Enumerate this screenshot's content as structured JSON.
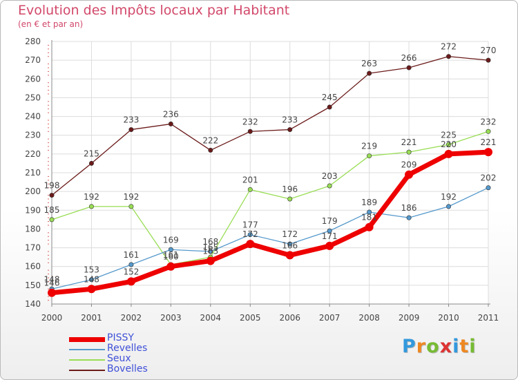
{
  "title": "Evolution des Impôts locaux par Habitant",
  "subtitle": "(en € et par an)",
  "brand": {
    "text": "Proxiti",
    "letters": [
      {
        "ch": "P",
        "color": "#3399dd"
      },
      {
        "ch": "r",
        "color": "#ee8822"
      },
      {
        "ch": "o",
        "color": "#77bb33"
      },
      {
        "ch": "x",
        "color": "#dd3333"
      },
      {
        "ch": "i",
        "color": "#3399dd"
      },
      {
        "ch": "t",
        "color": "#ee8822"
      },
      {
        "ch": "i",
        "color": "#77bb33"
      }
    ]
  },
  "chart_data": {
    "type": "line",
    "title": "Evolution des Impôts locaux par Habitant",
    "subtitle": "(en € et par an)",
    "x": [
      "2000",
      "2001",
      "2002",
      "2003",
      "2004",
      "2005",
      "2006",
      "2007",
      "2008",
      "2009",
      "2010",
      "2011"
    ],
    "ylim": [
      140,
      280
    ],
    "yticks": [
      140,
      150,
      160,
      170,
      180,
      190,
      200,
      210,
      220,
      230,
      240,
      250,
      260,
      270,
      280
    ],
    "grid": true,
    "legend_position": "bottom-left",
    "series": [
      {
        "name": "Bovelles",
        "color": "#6b1a1a",
        "values": [
          198,
          215,
          233,
          236,
          222,
          232,
          233,
          245,
          263,
          266,
          272,
          270
        ],
        "labels": [
          "198",
          "215",
          "233",
          "236",
          "222",
          "232",
          "233",
          "245",
          "263",
          "266",
          "272",
          "270"
        ]
      },
      {
        "name": "Seux",
        "color": "#99dd55",
        "values": [
          185,
          192,
          192,
          161,
          165,
          201,
          196,
          203,
          219,
          221,
          225,
          232
        ],
        "labels": [
          "185",
          "192",
          "192",
          "161",
          "165",
          "201",
          "196",
          "203",
          "219",
          "221",
          "225",
          "232"
        ]
      },
      {
        "name": "Revelles",
        "color": "#5599cc",
        "values": [
          148,
          153,
          161,
          169,
          168,
          177,
          172,
          179,
          189,
          186,
          192,
          202
        ],
        "labels": [
          "148",
          "153",
          "161",
          "169",
          "168",
          "177",
          "172",
          "179",
          "189",
          "186",
          "192",
          "202"
        ]
      },
      {
        "name": "PISSY",
        "color": "#ee0000",
        "values": [
          146,
          148,
          152,
          160,
          163,
          172,
          166,
          171,
          181,
          209,
          220,
          221
        ],
        "labels": [
          "146",
          "148",
          "152",
          "160",
          "163",
          "172",
          "166",
          "171",
          "181",
          "209",
          "220",
          "221"
        ]
      }
    ],
    "legend_order": [
      "PISSY",
      "Revelles",
      "Seux",
      "Bovelles"
    ]
  }
}
